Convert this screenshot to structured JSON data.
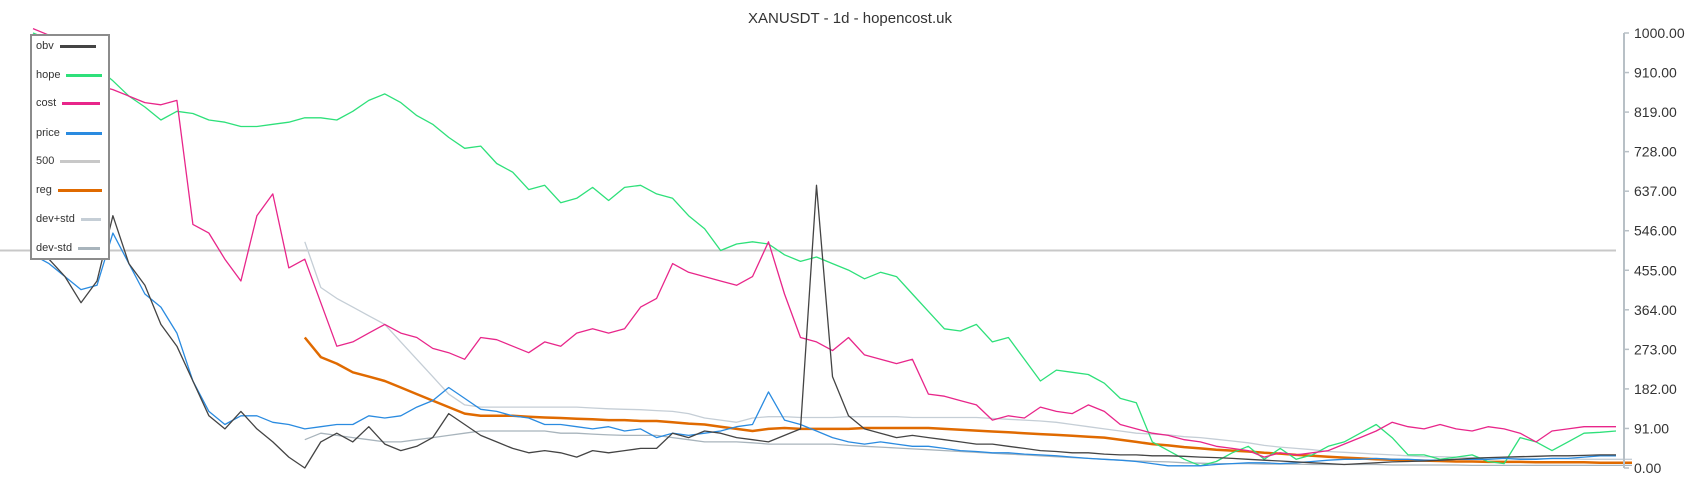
{
  "title": "XANUSDT - 1d - hopencost.uk",
  "colors": {
    "obv": "#444444",
    "hope": "#2ee07a",
    "cost": "#e8268a",
    "price": "#2a8be0",
    "500": "#c8c8c8",
    "reg": "#e06a00",
    "dev+std": "#c5ced6",
    "dev-std": "#a8b4bc"
  },
  "legend": [
    {
      "label": "obv",
      "key": "obv"
    },
    {
      "label": "hope",
      "key": "hope"
    },
    {
      "label": "cost",
      "key": "cost"
    },
    {
      "label": "price",
      "key": "price"
    },
    {
      "label": "500",
      "key": "500"
    },
    {
      "label": "reg",
      "key": "reg"
    },
    {
      "label": "dev+std",
      "key": "dev+std"
    },
    {
      "label": "dev-std",
      "key": "dev-std"
    }
  ],
  "chart_data": {
    "type": "line",
    "title": "XANUSDT - 1d - hopencost.uk",
    "xlabel": "",
    "ylabel": "",
    "ylim": [
      0,
      1000
    ],
    "y_axis_position": "right",
    "y_ticks": [
      "1000.00",
      "910.00",
      "819.00",
      "728.00",
      "637.00",
      "546.00",
      "455.00",
      "364.00",
      "273.00",
      "182.00",
      "91.00",
      "0.00"
    ],
    "grid": false,
    "legend_position": "upper-left",
    "x_count": 100,
    "series": [
      {
        "name": "obv",
        "start": 0,
        "values": [
          500,
          480,
          440,
          380,
          430,
          580,
          470,
          420,
          330,
          280,
          200,
          120,
          90,
          130,
          90,
          60,
          25,
          0,
          60,
          80,
          60,
          95,
          55,
          40,
          50,
          70,
          125,
          100,
          75,
          60,
          45,
          35,
          40,
          35,
          25,
          40,
          35,
          40,
          45,
          45,
          80,
          70,
          85,
          80,
          70,
          65,
          60,
          75,
          90,
          650,
          210,
          120,
          90,
          80,
          70,
          75,
          70,
          65,
          60,
          55,
          55,
          50,
          45,
          40,
          38,
          35,
          35,
          32,
          30,
          30,
          28,
          28,
          27,
          25,
          24,
          22,
          20,
          18,
          16,
          14,
          12,
          10,
          8,
          10,
          12,
          14,
          15,
          16,
          18,
          20,
          22,
          24,
          25,
          26,
          27,
          28,
          28,
          29,
          30,
          30
        ]
      },
      {
        "name": "hope",
        "start": 0,
        "values": [
          1000,
          985,
          960,
          925,
          920,
          890,
          855,
          830,
          800,
          820,
          815,
          800,
          795,
          785,
          785,
          790,
          795,
          805,
          805,
          800,
          820,
          845,
          860,
          840,
          810,
          790,
          760,
          735,
          740,
          700,
          680,
          640,
          650,
          610,
          620,
          645,
          615,
          645,
          650,
          630,
          620,
          580,
          550,
          500,
          515,
          520,
          515,
          490,
          475,
          485,
          470,
          455,
          435,
          450,
          440,
          400,
          360,
          320,
          315,
          330,
          290,
          300,
          250,
          200,
          225,
          220,
          215,
          195,
          160,
          150,
          60,
          40,
          20,
          5,
          15,
          35,
          50,
          20,
          45,
          20,
          30,
          50,
          60,
          80,
          100,
          70,
          30,
          30,
          20,
          25,
          30,
          15,
          10,
          70,
          60,
          40,
          60,
          80,
          82,
          85
        ]
      },
      {
        "name": "cost",
        "start": 0,
        "values": [
          1010,
          995,
          975,
          965,
          880,
          870,
          855,
          840,
          835,
          845,
          560,
          540,
          480,
          430,
          580,
          630,
          460,
          480,
          380,
          280,
          290,
          310,
          330,
          310,
          300,
          275,
          265,
          250,
          300,
          295,
          280,
          265,
          290,
          280,
          310,
          320,
          310,
          320,
          370,
          390,
          470,
          450,
          440,
          430,
          420,
          440,
          520,
          400,
          300,
          290,
          270,
          300,
          260,
          250,
          240,
          250,
          170,
          165,
          155,
          145,
          110,
          120,
          115,
          140,
          130,
          125,
          145,
          130,
          100,
          90,
          80,
          75,
          65,
          60,
          50,
          45,
          40,
          25,
          35,
          30,
          35,
          40,
          55,
          70,
          85,
          105,
          95,
          90,
          100,
          90,
          85,
          95,
          90,
          80,
          60,
          85,
          90,
          95,
          95,
          95
        ]
      },
      {
        "name": "price",
        "start": 0,
        "values": [
          490,
          470,
          440,
          410,
          420,
          540,
          470,
          400,
          370,
          310,
          200,
          130,
          100,
          120,
          120,
          105,
          100,
          90,
          95,
          100,
          100,
          120,
          115,
          120,
          140,
          155,
          185,
          160,
          135,
          130,
          120,
          115,
          100,
          100,
          95,
          90,
          95,
          85,
          90,
          70,
          80,
          75,
          80,
          85,
          95,
          100,
          175,
          110,
          100,
          85,
          70,
          60,
          55,
          60,
          55,
          50,
          50,
          45,
          40,
          38,
          35,
          35,
          32,
          30,
          28,
          25,
          22,
          20,
          18,
          15,
          10,
          5,
          5,
          5,
          8,
          10,
          12,
          12,
          10,
          12,
          15,
          18,
          20,
          20,
          22,
          20,
          20,
          18,
          18,
          20,
          20,
          20,
          22,
          20,
          20,
          22,
          22,
          25,
          28,
          28
        ]
      },
      {
        "name": "500",
        "constant": 500
      },
      {
        "name": "reg",
        "start": 17,
        "values": [
          300,
          255,
          240,
          220,
          210,
          200,
          185,
          170,
          155,
          140,
          125,
          120,
          120,
          120,
          118,
          116,
          115,
          113,
          112,
          110,
          110,
          108,
          108,
          105,
          102,
          100,
          95,
          90,
          85,
          90,
          92,
          90,
          90,
          90,
          90,
          92,
          92,
          92,
          92,
          92,
          90,
          88,
          86,
          84,
          82,
          80,
          78,
          76,
          74,
          72,
          70,
          65,
          60,
          55,
          52,
          48,
          45,
          42,
          40,
          38,
          35,
          33,
          30,
          28,
          26,
          24,
          22,
          20,
          19,
          18,
          17,
          16,
          15,
          15,
          14,
          14,
          14,
          13,
          13,
          13,
          13,
          12,
          12,
          12
        ]
      },
      {
        "name": "dev+std",
        "start": 17,
        "values": [
          520,
          415,
          390,
          370,
          350,
          330,
          290,
          250,
          210,
          170,
          145,
          140,
          140,
          140,
          140,
          140,
          140,
          140,
          138,
          136,
          135,
          134,
          132,
          130,
          125,
          115,
          110,
          105,
          115,
          118,
          118,
          116,
          116,
          116,
          118,
          118,
          118,
          118,
          116,
          116,
          116,
          116,
          116,
          114,
          112,
          110,
          108,
          105,
          100,
          95,
          90,
          85,
          80,
          78,
          76,
          72,
          70,
          66,
          62,
          58,
          52,
          48,
          45,
          42,
          38,
          36,
          34,
          32,
          30,
          28,
          26,
          26,
          25,
          24,
          24,
          23,
          22,
          22,
          21,
          21,
          20,
          20,
          20,
          20
        ]
      },
      {
        "name": "dev-std",
        "start": 17,
        "values": [
          65,
          80,
          75,
          70,
          65,
          60,
          60,
          65,
          70,
          75,
          80,
          85,
          85,
          85,
          85,
          85,
          80,
          80,
          78,
          76,
          75,
          75,
          75,
          70,
          65,
          60,
          60,
          60,
          58,
          55,
          55,
          55,
          55,
          55,
          52,
          50,
          48,
          46,
          44,
          42,
          40,
          38,
          36,
          34,
          32,
          30,
          28,
          26,
          24,
          22,
          20,
          18,
          16,
          15,
          14,
          12,
          11,
          10,
          10,
          10,
          9,
          9,
          9,
          8,
          8,
          8,
          8,
          8,
          7,
          7,
          7,
          7,
          7,
          6,
          6,
          6,
          6,
          6,
          6,
          6,
          6,
          6,
          6,
          6
        ]
      }
    ]
  }
}
